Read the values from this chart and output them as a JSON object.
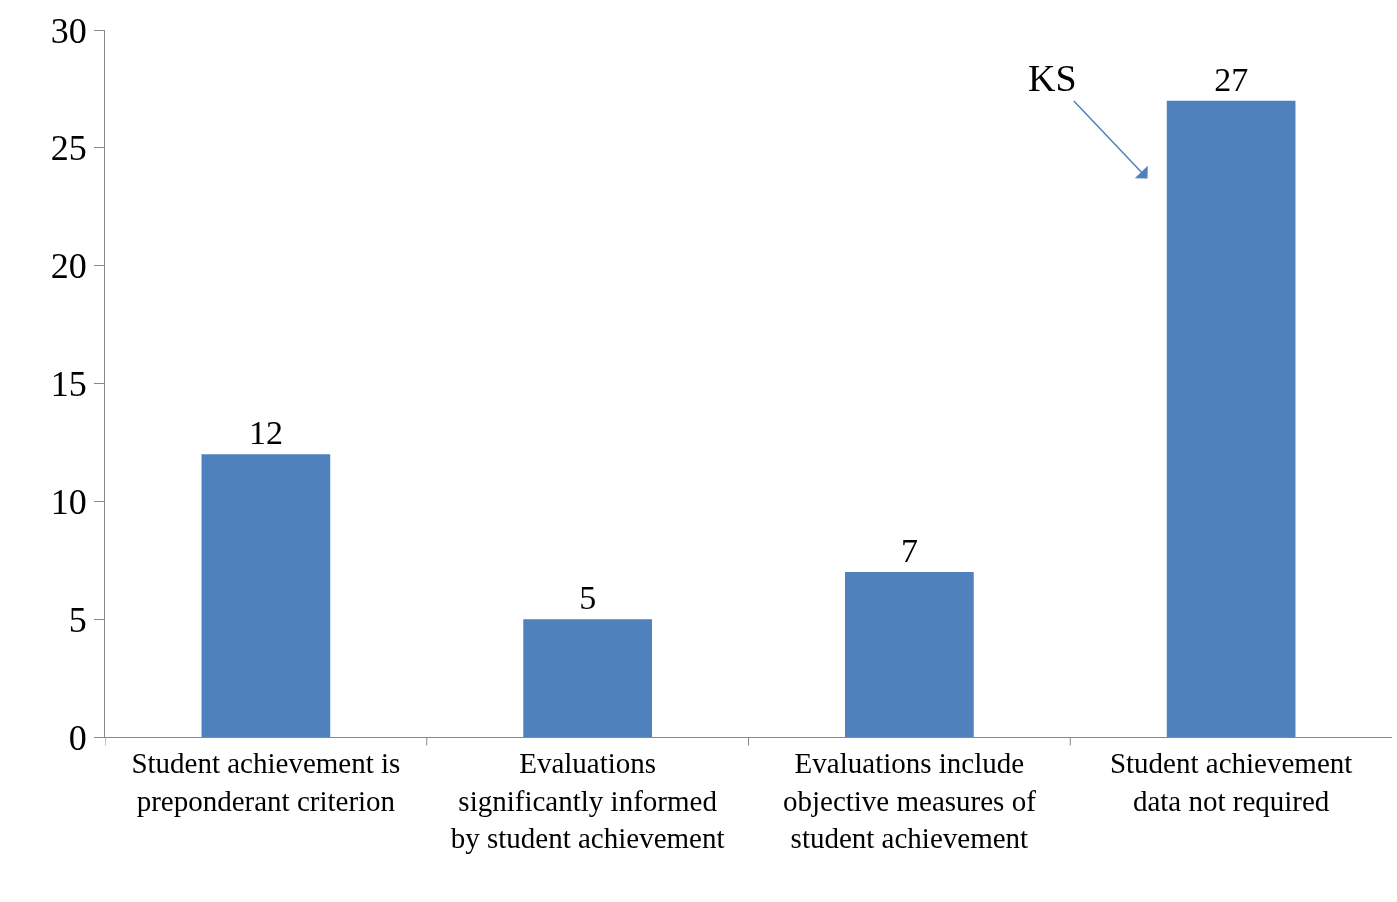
{
  "chart_data": {
    "type": "bar",
    "categories": [
      "Student achievement is preponderant criterion",
      "Evaluations significantly informed by student achievement",
      "Evaluations include objective measures of student achievement",
      "Student achievement data not required"
    ],
    "values": [
      12,
      5,
      7,
      27
    ],
    "color": "#4f81bd",
    "ylim": [
      0,
      30
    ],
    "yticks": [
      0,
      5,
      10,
      15,
      20,
      25,
      30
    ],
    "grid": false,
    "data_labels": true,
    "annotations": [
      "KS"
    ]
  }
}
